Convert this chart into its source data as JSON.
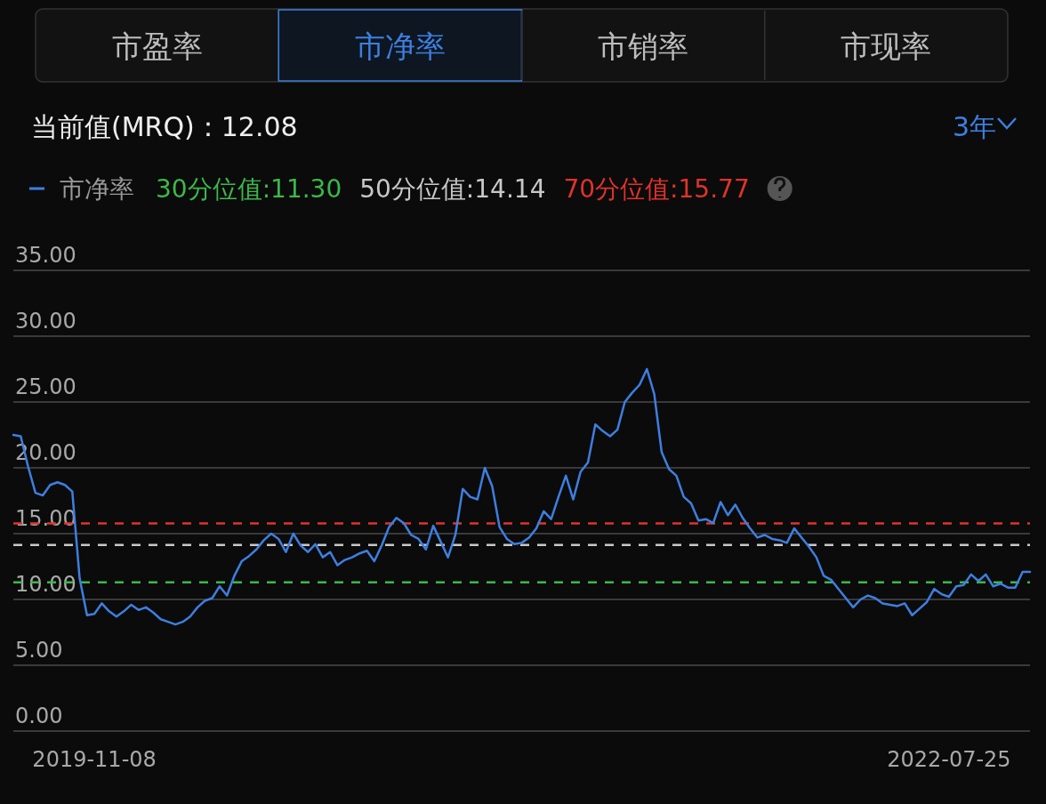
{
  "chart_data": {
    "type": "line",
    "subtitle": "当前值(MRQ)：12.08",
    "annotations": [
      "市盈率",
      "市净率",
      "市销率",
      "市现率",
      "3年"
    ],
    "categories": [
      null,
      null,
      null,
      null,
      null,
      null,
      null,
      null,
      null,
      null,
      null,
      "2019-11-08",
      null,
      null,
      null,
      null,
      null,
      null,
      null,
      null,
      null,
      null,
      null,
      null,
      null,
      null,
      null,
      null,
      null,
      null,
      null,
      null,
      null,
      null,
      null,
      null,
      null,
      null,
      null,
      null,
      null,
      null,
      null,
      null,
      null,
      null,
      null,
      null,
      null,
      null,
      null,
      null,
      null,
      null,
      null,
      null,
      null,
      null,
      null,
      null,
      null,
      null,
      null,
      null,
      null,
      null,
      null,
      null,
      null,
      null,
      null,
      null,
      null,
      null,
      null,
      null,
      null,
      null,
      null,
      null,
      null,
      null,
      null,
      null,
      null,
      null,
      null,
      null,
      null,
      null,
      null,
      null,
      null,
      null,
      null,
      null,
      null,
      null,
      null,
      null,
      null,
      null,
      null,
      null,
      null,
      null,
      null,
      null,
      null,
      null,
      null,
      null,
      null,
      null,
      null,
      null,
      null,
      null,
      null,
      null,
      null,
      null,
      null,
      null,
      null,
      null,
      null,
      "2022-07-25",
      null,
      null,
      null,
      null,
      null,
      null,
      null,
      null,
      null,
      null,
      null
    ],
    "series": [
      {
        "name": "市净率",
        "color": "#3d7fe0",
        "values": [
          22.5,
          22.4,
          20.1,
          18.1,
          17.9,
          18.7,
          18.9,
          18.7,
          18.2,
          11.6,
          8.8,
          8.9,
          9.7,
          9.1,
          8.7,
          9.1,
          9.6,
          9.2,
          9.4,
          9.0,
          8.5,
          8.3,
          8.1,
          8.3,
          8.7,
          9.4,
          9.9,
          10.1,
          11.0,
          10.3,
          11.8,
          12.9,
          13.3,
          13.8,
          14.5,
          15.0,
          14.6,
          13.6,
          15.0,
          14.1,
          13.6,
          14.2,
          13.2,
          13.6,
          12.6,
          13.0,
          13.2,
          13.5,
          13.7,
          12.9,
          14.1,
          15.5,
          16.2,
          15.8,
          14.9,
          14.6,
          13.8,
          15.6,
          14.4,
          13.2,
          14.9,
          18.4,
          17.8,
          17.6,
          20.0,
          18.6,
          15.5,
          14.6,
          14.2,
          14.3,
          14.7,
          15.4,
          16.7,
          16.1,
          17.8,
          19.4,
          17.6,
          19.7,
          20.4,
          23.3,
          22.8,
          22.4,
          22.9,
          25.0,
          25.7,
          26.3,
          27.5,
          25.6,
          21.2,
          19.9,
          19.4,
          17.8,
          17.3,
          16.0,
          16.1,
          15.8,
          17.4,
          16.4,
          17.2,
          16.2,
          15.4,
          14.7,
          14.9,
          14.6,
          14.5,
          14.3,
          15.4,
          14.7,
          14.0,
          13.2,
          11.8,
          11.5,
          10.8,
          10.1,
          9.4,
          10.0,
          10.3,
          10.1,
          9.7,
          9.6,
          9.5,
          9.7,
          8.8,
          9.3,
          9.8,
          10.8,
          10.4,
          10.2,
          11.0,
          11.1,
          11.9,
          11.4,
          11.9,
          11.0,
          11.2,
          10.9,
          10.9,
          12.1,
          12.1
        ]
      }
    ],
    "ref_lines": [
      {
        "axis": "y",
        "value": 11.3,
        "label": "30分位值:11.30",
        "color": "#3cb84a",
        "line_style": "dashed"
      },
      {
        "axis": "y",
        "value": 14.14,
        "label": "50分位值:14.14",
        "color": "#c8c8c8",
        "line_style": "dashed"
      },
      {
        "axis": "y",
        "value": 15.77,
        "label": "70分位值:15.77",
        "color": "#e0332b",
        "line_style": "dashed"
      }
    ],
    "ylim": [
      0,
      35
    ],
    "yticks": [
      {
        "value": 0,
        "label": "0.00"
      },
      {
        "value": 5,
        "label": "5.00"
      },
      {
        "value": 10,
        "label": "10.00"
      },
      {
        "value": 15,
        "label": "15.00"
      },
      {
        "value": 20,
        "label": "20.00"
      },
      {
        "value": 25,
        "label": "25.00"
      },
      {
        "value": 30,
        "label": "30.00"
      },
      {
        "value": 35,
        "label": "35.00"
      }
    ],
    "grid": "y",
    "legend": "top left",
    "line_style": "solid",
    "marker": "none"
  }
}
